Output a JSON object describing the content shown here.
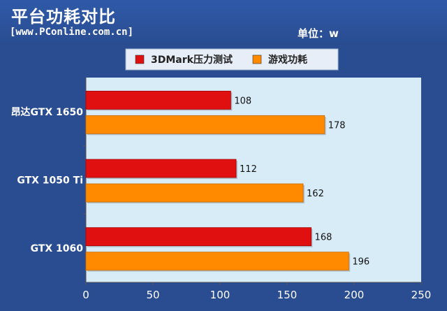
{
  "header": {
    "title": "平台功耗对比",
    "source": "[www.PConline.com.cn]",
    "unit": "单位：w"
  },
  "colors": {
    "background": "#2a4d92",
    "plot_background": "#d8ecf8",
    "legend_background": "#e7eef7",
    "series_1": "#e01010",
    "series_2": "#ff8a00"
  },
  "chart_data": {
    "type": "bar",
    "orientation": "horizontal",
    "categories": [
      "昂达GTX 1650",
      "GTX 1050 Ti",
      "GTX 1060"
    ],
    "series": [
      {
        "name": "3DMark压力测试",
        "values": [
          108,
          112,
          168
        ]
      },
      {
        "name": "游戏功耗",
        "values": [
          178,
          162,
          196
        ]
      }
    ],
    "xlim": [
      0,
      250
    ],
    "x_ticks": [
      0,
      50,
      100,
      150,
      200,
      250
    ],
    "grid": false,
    "legend_position": "top",
    "data_labels": true
  }
}
